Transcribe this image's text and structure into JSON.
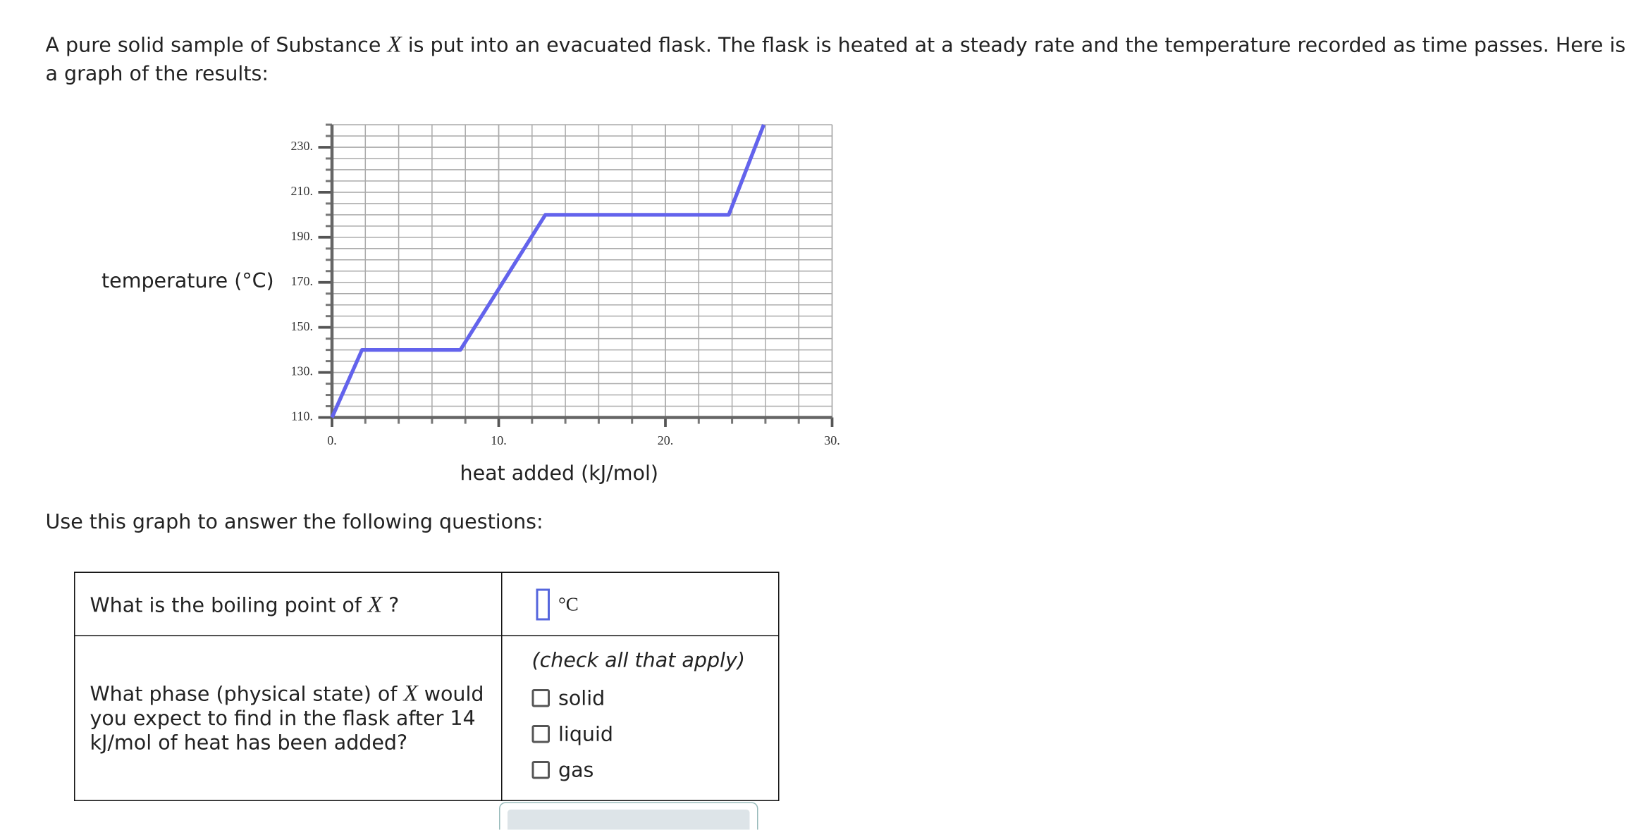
{
  "intro": {
    "before": "A pure solid sample of Substance",
    "variable": "X",
    "after": "is put into an evacuated flask. The flask is heated at a steady rate and the temperature recorded as time passes. Here is a graph of the results:"
  },
  "chart_data": {
    "type": "line",
    "x_label": "heat added (kJ/mol)",
    "y_label": "temperature (°C)",
    "x": [
      0,
      1.8,
      7.7,
      12.8,
      23.8,
      25.9
    ],
    "series": [
      {
        "color": "#6363ec",
        "values": [
          110,
          140,
          140,
          200,
          200,
          240
        ]
      }
    ],
    "xlim": [
      0,
      30
    ],
    "ylim": [
      110,
      240
    ],
    "xticks": [
      {
        "value": 0,
        "label": "0."
      },
      {
        "value": 10,
        "label": "10."
      },
      {
        "value": 20,
        "label": "20."
      },
      {
        "value": 30,
        "label": "30."
      }
    ],
    "yticks": [
      {
        "value": 110,
        "label": "110."
      },
      {
        "value": 130,
        "label": "130."
      },
      {
        "value": 150,
        "label": "150."
      },
      {
        "value": 170,
        "label": "170."
      },
      {
        "value": 190,
        "label": "190."
      },
      {
        "value": 210,
        "label": "210."
      },
      {
        "value": 230,
        "label": "230."
      }
    ],
    "grid": true
  },
  "prompt": "Use this graph to answer the following questions:",
  "table": {
    "rows": [
      {
        "question": {
          "before": "What is the boiling point of",
          "variable": "X",
          "after": "?"
        },
        "unit": "°C"
      },
      {
        "question": {
          "before": "What phase (physical state) of",
          "variable": "X",
          "after": "would you expect to find in the flask after 14 kJ/mol of heat has been added?"
        },
        "hint": "(check all that apply)",
        "options": [
          "solid",
          "liquid",
          "gas"
        ]
      }
    ]
  }
}
